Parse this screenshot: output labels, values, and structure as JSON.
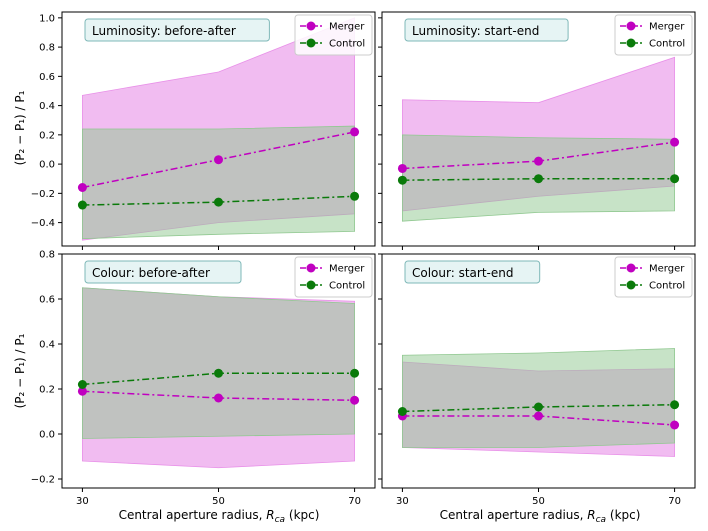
{
  "figure": {
    "xlabel_main": "Central aperture radius, ",
    "xlabel_sym": "R",
    "xlabel_sub": "ca",
    "xlabel_unit": " (kpc)",
    "ylabel": "(P₂ − P₁) / P₁"
  },
  "colors": {
    "merger": "#c000c0",
    "merger_fill": "#e890e8",
    "control": "#0a7a0a",
    "control_fill": "#90c890",
    "title_box_fill": "#e6f4f4",
    "title_box_edge": "#7fb8b8"
  },
  "chart_data": [
    {
      "type": "line",
      "title": "Luminosity: before-after",
      "x": [
        30,
        50,
        70
      ],
      "xticks": [
        "30",
        "50",
        "70"
      ],
      "ylim": [
        -0.56,
        1.04
      ],
      "yticks": [
        -0.4,
        -0.2,
        0.0,
        0.2,
        0.4,
        0.6,
        0.8,
        1.0
      ],
      "ytick_labels": [
        "−0.4",
        "−0.2",
        "0.0",
        "0.2",
        "0.4",
        "0.6",
        "0.8",
        "1.0"
      ],
      "show_yticklabels": true,
      "show_xticklabels": false,
      "legend": "top-right",
      "series": [
        {
          "name": "Merger",
          "values": [
            -0.16,
            0.03,
            0.22
          ],
          "lower": [
            -0.52,
            -0.4,
            -0.34
          ],
          "upper": [
            0.47,
            0.63,
            1.0
          ]
        },
        {
          "name": "Control",
          "values": [
            -0.28,
            -0.26,
            -0.22
          ],
          "lower": [
            -0.51,
            -0.48,
            -0.46
          ],
          "upper": [
            0.24,
            0.24,
            0.26
          ]
        }
      ]
    },
    {
      "type": "line",
      "title": "Luminosity: start-end",
      "x": [
        30,
        50,
        70
      ],
      "xticks": [
        "30",
        "50",
        "70"
      ],
      "ylim": [
        -0.56,
        1.04
      ],
      "yticks": [
        -0.4,
        -0.2,
        0.0,
        0.2,
        0.4,
        0.6,
        0.8,
        1.0
      ],
      "ytick_labels": [
        "−0.4",
        "−0.2",
        "0.0",
        "0.2",
        "0.4",
        "0.6",
        "0.8",
        "1.0"
      ],
      "show_yticklabels": false,
      "show_xticklabels": false,
      "legend": "top-right",
      "series": [
        {
          "name": "Merger",
          "values": [
            -0.03,
            0.02,
            0.15
          ],
          "lower": [
            -0.32,
            -0.22,
            -0.15
          ],
          "upper": [
            0.44,
            0.42,
            0.73
          ]
        },
        {
          "name": "Control",
          "values": [
            -0.11,
            -0.1,
            -0.1
          ],
          "lower": [
            -0.39,
            -0.33,
            -0.32
          ],
          "upper": [
            0.2,
            0.18,
            0.17
          ]
        }
      ]
    },
    {
      "type": "line",
      "title": "Colour: before-after",
      "x": [
        30,
        50,
        70
      ],
      "xticks": [
        "30",
        "50",
        "70"
      ],
      "ylim": [
        -0.24,
        0.8
      ],
      "yticks": [
        -0.2,
        0.0,
        0.2,
        0.4,
        0.6,
        0.8
      ],
      "ytick_labels": [
        "−0.2",
        "0.0",
        "0.2",
        "0.4",
        "0.6",
        "0.8"
      ],
      "show_yticklabels": true,
      "show_xticklabels": true,
      "legend": "top-right",
      "series": [
        {
          "name": "Merger",
          "values": [
            0.19,
            0.16,
            0.15
          ],
          "lower": [
            -0.12,
            -0.15,
            -0.12
          ],
          "upper": [
            0.65,
            0.61,
            0.59
          ]
        },
        {
          "name": "Control",
          "values": [
            0.22,
            0.27,
            0.27
          ],
          "lower": [
            -0.02,
            -0.01,
            0.0
          ],
          "upper": [
            0.65,
            0.61,
            0.58
          ]
        }
      ]
    },
    {
      "type": "line",
      "title": "Colour: start-end",
      "x": [
        30,
        50,
        70
      ],
      "xticks": [
        "30",
        "50",
        "70"
      ],
      "ylim": [
        -0.24,
        0.8
      ],
      "yticks": [
        -0.2,
        0.0,
        0.2,
        0.4,
        0.6,
        0.8
      ],
      "ytick_labels": [
        "−0.2",
        "0.0",
        "0.2",
        "0.4",
        "0.6",
        "0.8"
      ],
      "show_yticklabels": false,
      "show_xticklabels": true,
      "legend": "top-right",
      "series": [
        {
          "name": "Merger",
          "values": [
            0.08,
            0.08,
            0.04
          ],
          "lower": [
            -0.06,
            -0.08,
            -0.1
          ],
          "upper": [
            0.32,
            0.28,
            0.29
          ]
        },
        {
          "name": "Control",
          "values": [
            0.1,
            0.12,
            0.13
          ],
          "lower": [
            -0.06,
            -0.06,
            -0.04
          ],
          "upper": [
            0.35,
            0.36,
            0.38
          ]
        }
      ]
    }
  ]
}
